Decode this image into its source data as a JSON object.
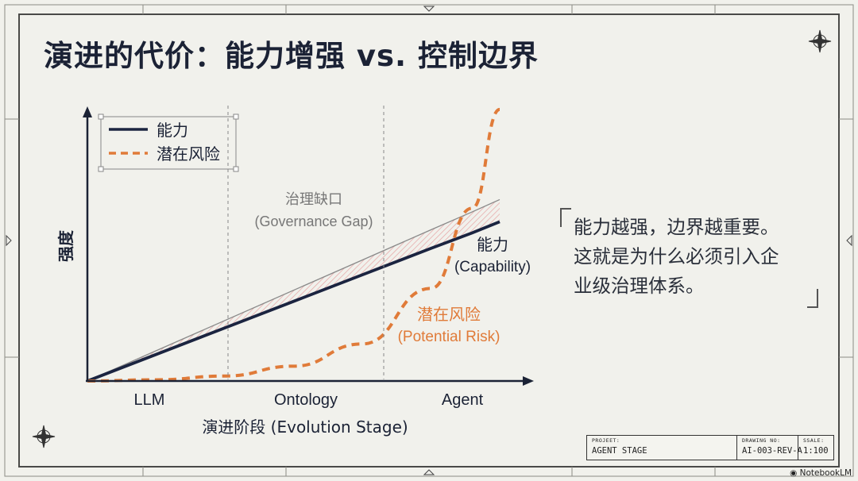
{
  "title": "演进的代价：能力增强 vs. 控制边界",
  "callout": {
    "line1": "能力越强，边界越重要。",
    "line2": "这就是为什么必须引入企",
    "line3": "业级治理体系。"
  },
  "title_block": {
    "project_label": "PROJEET:",
    "project_value": "AGENT STAGE",
    "drawing_label": "DRAWING NO:",
    "drawing_value": "AI-003-REV-A",
    "scale_label": "SSALE:",
    "scale_value": "1:100"
  },
  "brand": "NotebookLM",
  "colors": {
    "capability": "#1b2440",
    "risk": "#e07b39",
    "gap_hatch": "#e8a0a0",
    "stage_divider": "#888888"
  },
  "chart_data": {
    "type": "line",
    "ylabel": "强度",
    "xlabel": "演进阶段 (Evolution Stage)",
    "categories": [
      "LLM",
      "Ontology",
      "Agent"
    ],
    "x": [
      0,
      0.5,
      1,
      1.5,
      2,
      2.5,
      2.8,
      3
    ],
    "series": [
      {
        "name": "能力",
        "label_name": "能力",
        "label_en": "(Capability)",
        "values": [
          0,
          0.215,
          0.43,
          0.645,
          0.86,
          1.075,
          1.2,
          1.29
        ]
      },
      {
        "name": "潜在风险",
        "label_name": "潜在风险",
        "label_en": "(Potential Risk)",
        "values": [
          0,
          0.01,
          0.04,
          0.12,
          0.3,
          0.75,
          1.4,
          2.2
        ]
      }
    ],
    "reference_line": [
      0,
      0.245,
      0.49,
      0.735,
      0.98,
      1.225,
      1.37,
      1.47
    ],
    "gap_label": {
      "name": "治理缺口",
      "en": "(Governance Gap)"
    },
    "legend": [
      "能力",
      "潜在风险"
    ],
    "legend_position": "top-left",
    "ylim": [
      0,
      2.4
    ],
    "stage_boundaries": [
      1,
      2
    ]
  }
}
